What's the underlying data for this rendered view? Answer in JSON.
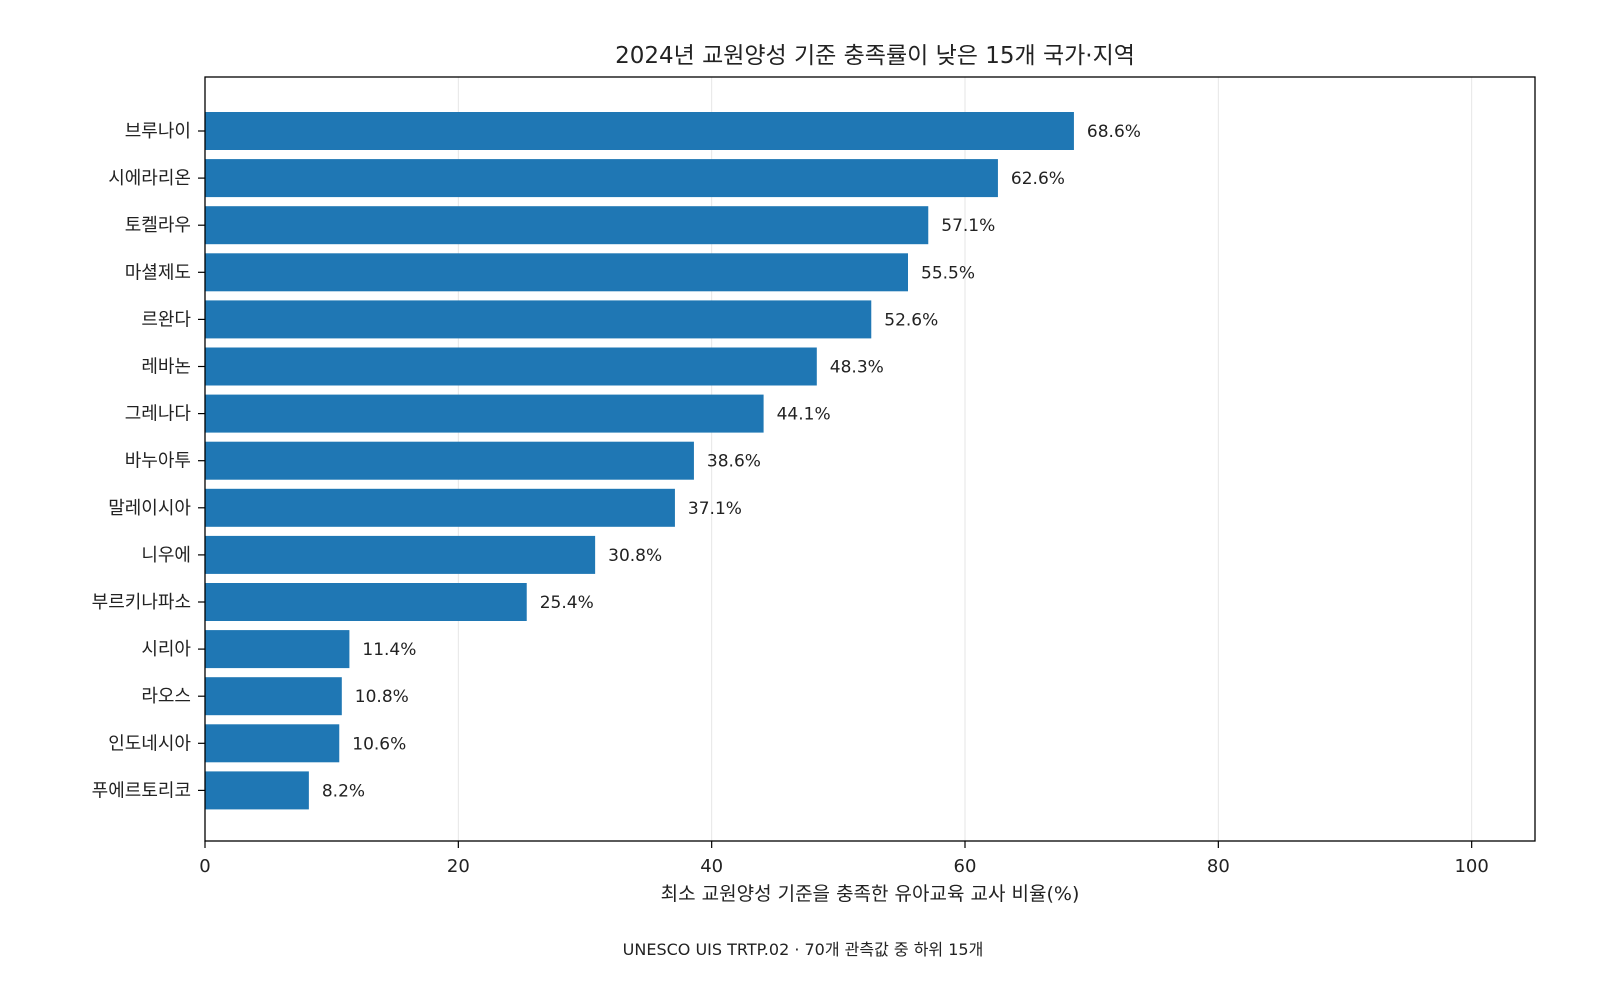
{
  "chart_data": {
    "type": "bar",
    "orientation": "horizontal",
    "title": "2024년 교원양성 기준 충족률이 낮은 15개 국가·지역",
    "xlabel": "최소 교원양성 기준을 충족한 유아교육 교사 비율(%)",
    "ylabel": "",
    "xlim": [
      0,
      105
    ],
    "xticks": [
      0,
      20,
      40,
      60,
      80,
      100
    ],
    "xtick_labels": [
      "0",
      "20",
      "40",
      "60",
      "80",
      "100"
    ],
    "grid": "vertical",
    "bar_color": "#1f77b4",
    "value_suffix": "%",
    "categories": [
      "브루나이",
      "시에라리온",
      "토켈라우",
      "마셜제도",
      "르완다",
      "레바논",
      "그레나다",
      "바누아투",
      "말레이시아",
      "니우에",
      "부르키나파소",
      "시리아",
      "라오스",
      "인도네시아",
      "푸에르토리코"
    ],
    "values": [
      68.6,
      62.6,
      57.1,
      55.5,
      52.6,
      48.3,
      44.1,
      38.6,
      37.1,
      30.8,
      25.4,
      11.4,
      10.8,
      10.6,
      8.2
    ],
    "value_labels": [
      "68.6%",
      "62.6%",
      "57.1%",
      "55.5%",
      "52.6%",
      "48.3%",
      "44.1%",
      "38.6%",
      "37.1%",
      "30.8%",
      "25.4%",
      "11.4%",
      "10.8%",
      "10.6%",
      "8.2%"
    ],
    "source": "UNESCO UIS TRTP.02 · 70개 관측값 중 하위 15개"
  }
}
